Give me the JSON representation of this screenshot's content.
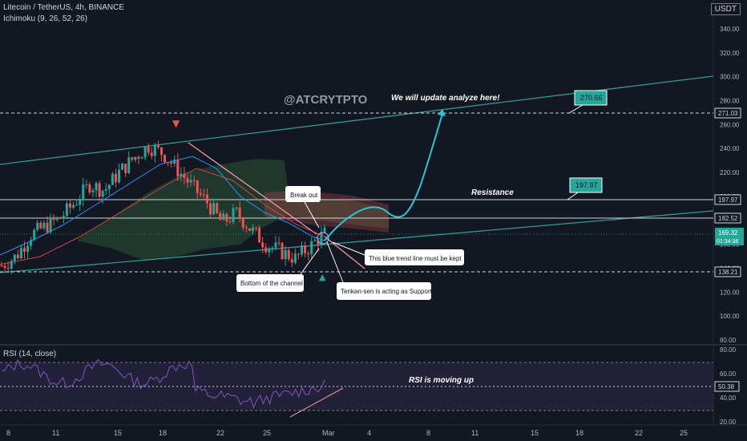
{
  "header": {
    "symbol": "Litecoin / TetherUS, 4h, BINANCE",
    "indicator": "Ichimoku (9, 26, 52, 26)",
    "currency": "USDT"
  },
  "rsi_panel": {
    "label": "RSI (14, close)"
  },
  "annotations": {
    "watermark": "@ATCRYTPTO",
    "update_note": "We will update analyze here!",
    "resistance": "Resistance",
    "rsi_note": "RSI is moving up",
    "break_out": "Break out",
    "trend_line_note": "This blue trend line must be kept",
    "bottom_note": "Bottom of the channel",
    "tenkan_note": "Tenkan-sen is acting as Support",
    "target_1": "270.66",
    "target_2": "197.97"
  },
  "price_axis": {
    "ticks": [
      "340.00",
      "320.00",
      "300.00",
      "280.00",
      "260.00",
      "240.00",
      "220.00",
      "200.00",
      "180.00",
      "160.00",
      "140.00",
      "120.00",
      "100.00",
      "80.00"
    ],
    "level_labels": [
      "271.03",
      "197.97",
      "182.52",
      "138.21"
    ],
    "current_price": "169.32",
    "countdown": "01:34:38"
  },
  "rsi_axis": {
    "ticks": [
      "80.00",
      "60.00",
      "40.00",
      "20.00"
    ],
    "current_label": "50.38"
  },
  "time_axis": {
    "ticks": [
      "8",
      "11",
      "15",
      "18",
      "22",
      "25",
      "Mar",
      "4",
      "8",
      "11",
      "15",
      "18",
      "22",
      "25"
    ]
  },
  "colors": {
    "background": "#131722",
    "up_candle": "#26a69a",
    "down_candle": "#ef5350",
    "trend_line": "#2a9d8f",
    "projection": "#26c6da",
    "rsi_line": "#7e57c2",
    "resistance_line": "#ef9a9a"
  },
  "chart_data": {
    "type": "candlestick",
    "price_range": [
      80,
      350
    ],
    "rsi_range": [
      20,
      80
    ],
    "horizontal_levels": [
      271.03,
      197.97,
      182.52,
      138.21
    ],
    "current_price": 169.32,
    "rsi_current": 50.38,
    "price_series": {
      "x": [
        "8",
        "9",
        "10",
        "11",
        "12",
        "13",
        "14",
        "15",
        "16",
        "17",
        "18",
        "19",
        "20",
        "21",
        "22",
        "23",
        "24",
        "25",
        "26",
        "27",
        "28",
        "Mar",
        "2"
      ],
      "close": [
        142,
        150,
        168,
        175,
        182,
        195,
        210,
        205,
        220,
        232,
        242,
        236,
        222,
        208,
        195,
        178,
        186,
        172,
        160,
        154,
        148,
        158,
        169
      ]
    },
    "projection_targets": [
      197.97,
      270.66
    ]
  }
}
